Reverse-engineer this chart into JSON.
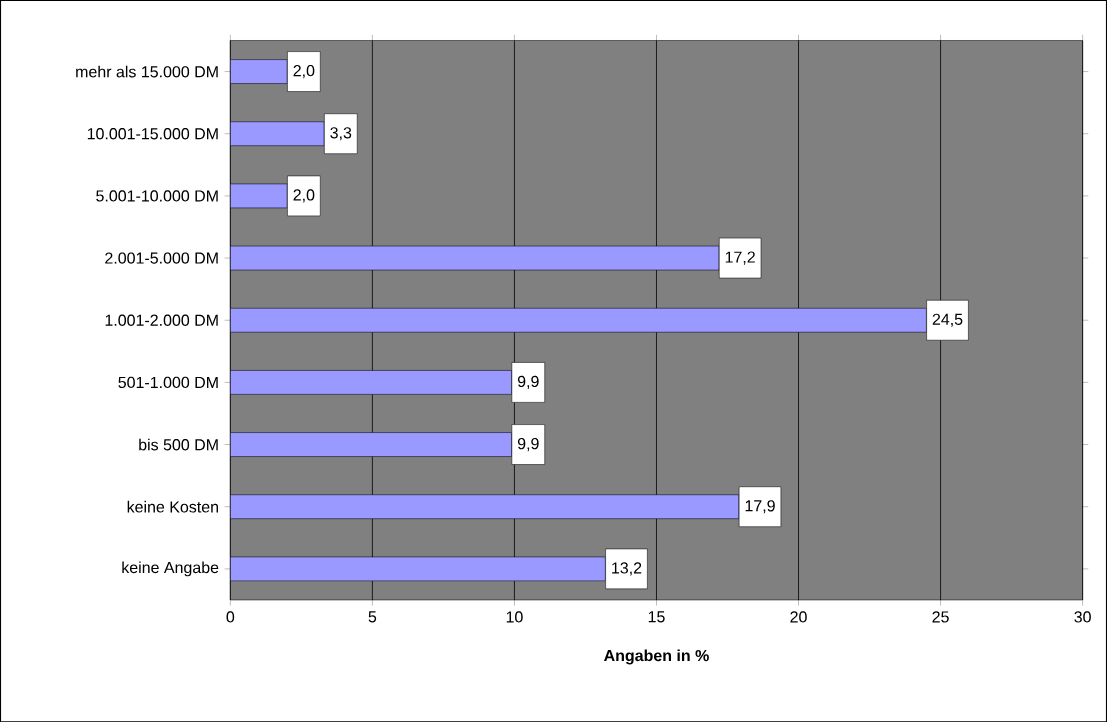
{
  "chart_data": {
    "type": "bar",
    "orientation": "horizontal",
    "xlabel": "Angaben in %",
    "categories": [
      "mehr als 15.000 DM",
      "10.001-15.000 DM",
      "5.001-10.000 DM",
      "2.001-5.000 DM",
      "1.001-2.000 DM",
      "501-1.000 DM",
      "bis 500 DM",
      "keine Kosten",
      "keine Angabe"
    ],
    "values": [
      2.0,
      3.3,
      2.0,
      17.2,
      24.5,
      9.9,
      9.9,
      17.9,
      13.2
    ],
    "value_labels": [
      "2,0",
      "3,3",
      "2,0",
      "17,2",
      "24,5",
      "9,9",
      "9,9",
      "17,9",
      "13,2"
    ],
    "color": "#9999ff",
    "xlim": [
      0,
      30
    ],
    "xticks": [
      0,
      5,
      10,
      15,
      20,
      25,
      30
    ],
    "grid": "x"
  }
}
